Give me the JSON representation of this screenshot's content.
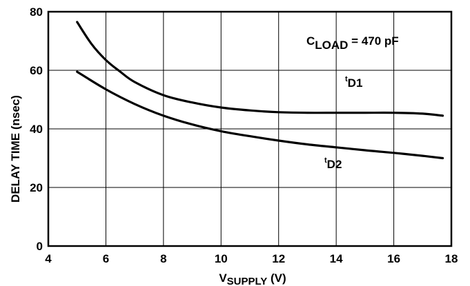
{
  "chart_data": {
    "type": "line",
    "x_ticks": [
      "4",
      "6",
      "8",
      "10",
      "12",
      "14",
      "16",
      "18"
    ],
    "y_ticks": [
      "0",
      "20",
      "40",
      "60",
      "80"
    ],
    "xlim": [
      4,
      18
    ],
    "ylim": [
      0,
      80
    ],
    "grid": true,
    "xlabel": {
      "main": "V",
      "sub": "SUPPLY",
      "suffix": " (V)"
    },
    "ylabel": "DELAY TIME (nsec)",
    "condition": {
      "main": "C",
      "sub": "LOAD",
      "suffix": " = 470 pF"
    },
    "series": [
      {
        "name": "tD1",
        "label_main": "t",
        "label_sub": "D1",
        "x": [
          5,
          5.5,
          6,
          6.5,
          7,
          8,
          9,
          10,
          11,
          12,
          13,
          14,
          15,
          16,
          17,
          17.7
        ],
        "y": [
          76.5,
          69,
          63.5,
          59.5,
          56,
          51.5,
          49,
          47.3,
          46.3,
          45.7,
          45.5,
          45.5,
          45.5,
          45.5,
          45.2,
          44.5
        ]
      },
      {
        "name": "tD2",
        "label_main": "t",
        "label_sub": "D2",
        "x": [
          5,
          6,
          7,
          8,
          9,
          10,
          11,
          12,
          13,
          14,
          15,
          16,
          17,
          17.7
        ],
        "y": [
          59.5,
          53.5,
          48.5,
          44.5,
          41.5,
          39.2,
          37.5,
          36,
          34.7,
          33.7,
          32.7,
          31.8,
          30.8,
          30
        ]
      }
    ]
  }
}
